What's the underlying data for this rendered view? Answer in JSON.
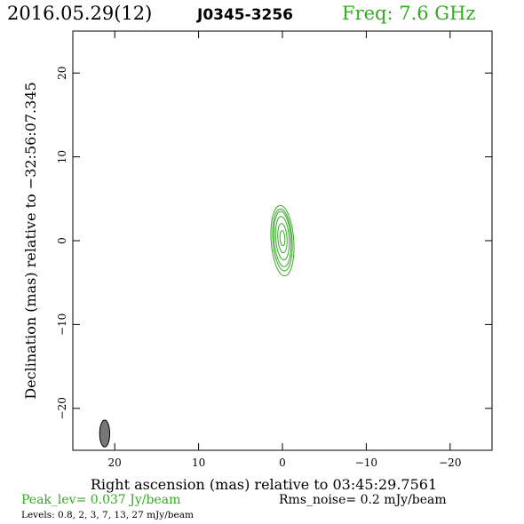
{
  "header": {
    "date": "2016.05.29(12)",
    "source": "J0345-3256",
    "freq": "Freq: 7.6 GHz"
  },
  "chart_data": {
    "type": "contour",
    "xlabel": "Right ascension (mas) relative to 03:45:29.7561",
    "ylabel": "Declination (mas) relative to −32:56:07.345",
    "xlim": [
      25,
      -25
    ],
    "ylim": [
      -25,
      25
    ],
    "xticks": [
      20,
      10,
      0,
      -10,
      -20
    ],
    "xtick_labels": [
      "20",
      "10",
      "0",
      "−10",
      "−20"
    ],
    "yticks": [
      -20,
      -10,
      0,
      10,
      20
    ],
    "ytick_labels": [
      "−20",
      "−10",
      "0",
      "10",
      "20"
    ],
    "contour_color": "#33aa22",
    "contours": [
      {
        "level": 0.8,
        "cx": 0,
        "cy": 0,
        "rx": 1.35,
        "ry": 4.2
      },
      {
        "level": 2,
        "cx": 0,
        "cy": 0.1,
        "rx": 1.15,
        "ry": 3.7
      },
      {
        "level": 3,
        "cx": 0,
        "cy": 0.2,
        "rx": 1.0,
        "ry": 3.3
      },
      {
        "level": 7,
        "cx": 0,
        "cy": 0.3,
        "rx": 0.8,
        "ry": 2.6
      },
      {
        "level": 13,
        "cx": 0,
        "cy": 0.3,
        "rx": 0.55,
        "ry": 1.75
      },
      {
        "level": 27,
        "cx": 0,
        "cy": 0.3,
        "rx": 0.3,
        "ry": 0.9
      }
    ],
    "beam": {
      "x": 21.2,
      "y": -23.0,
      "rx": 0.6,
      "ry": 1.6,
      "color": "#777777"
    },
    "grid": false
  },
  "footer": {
    "peak": "Peak_lev=  0.037 Jy/beam",
    "rms": "Rms_noise=   0.2 mJy/beam",
    "levels": "Levels: 0.8,    2,    3,    7,   13,   27 mJy/beam"
  }
}
